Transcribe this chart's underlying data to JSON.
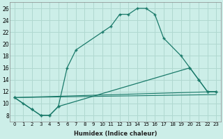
{
  "xlabel": "Humidex (Indice chaleur)",
  "bg_color": "#cceee8",
  "grid_color": "#b0d8d0",
  "line_color": "#1a7a6a",
  "xlim": [
    -0.5,
    23.5
  ],
  "ylim": [
    7,
    27
  ],
  "yticks": [
    8,
    10,
    12,
    14,
    16,
    18,
    20,
    22,
    24,
    26
  ],
  "xticks": [
    0,
    1,
    2,
    3,
    4,
    5,
    6,
    7,
    8,
    9,
    10,
    11,
    12,
    13,
    14,
    15,
    16,
    17,
    18,
    19,
    20,
    21,
    22,
    23
  ],
  "xtick_labels": [
    "0",
    "1",
    "2",
    "3",
    "4",
    "5",
    "6",
    "7",
    "8",
    "9",
    "10",
    "11",
    "12",
    "13",
    "14",
    "15",
    "16",
    "17",
    "18",
    "19",
    "20",
    "21",
    "22",
    "23"
  ],
  "line1_x": [
    0,
    1,
    2,
    3,
    4,
    5,
    6,
    7,
    10,
    11,
    12,
    13,
    14,
    15,
    16,
    17,
    19,
    20,
    21,
    22,
    23
  ],
  "line1_y": [
    11,
    10,
    9,
    8,
    8,
    9.5,
    16,
    19,
    22,
    23,
    25,
    25,
    26,
    26,
    25,
    21,
    18,
    16,
    14,
    12,
    12
  ],
  "line2_x": [
    0,
    2,
    3,
    4,
    5,
    20,
    21,
    22,
    23
  ],
  "line2_y": [
    11,
    9,
    8,
    8,
    9.5,
    16,
    14,
    12,
    12
  ],
  "line3_x": [
    0,
    23
  ],
  "line3_y": [
    11,
    12
  ],
  "line4_x": [
    0,
    23
  ],
  "line4_y": [
    11,
    11.5
  ]
}
